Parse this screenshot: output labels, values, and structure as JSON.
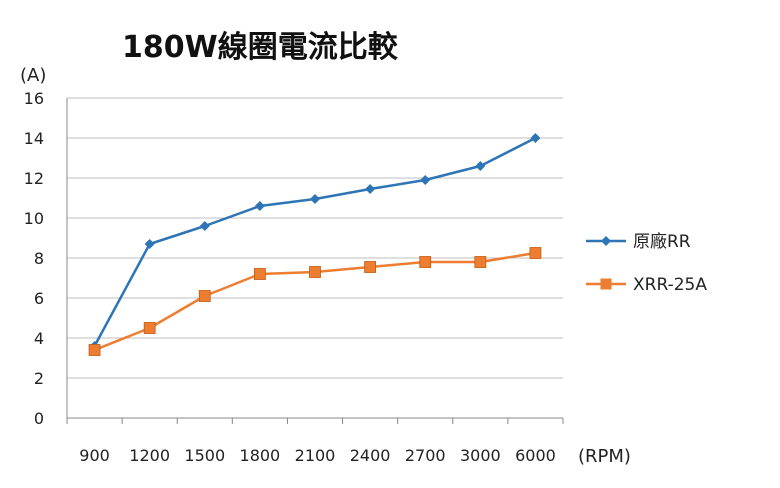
{
  "chart_data": {
    "type": "line",
    "title": "180W線圈電流比較",
    "ylabel": "(A)",
    "xlabel": "(RPM)",
    "categories": [
      "900",
      "1200",
      "1500",
      "1800",
      "2100",
      "2400",
      "2700",
      "3000",
      "6000"
    ],
    "ylim": [
      0,
      16
    ],
    "yticks": [
      0,
      2,
      4,
      6,
      8,
      10,
      12,
      14,
      16
    ],
    "grid": true,
    "legend": "right",
    "series": [
      {
        "name": "原廠RR",
        "color": "#2e75b6",
        "marker": "diamond",
        "values": [
          3.6,
          8.7,
          9.6,
          10.6,
          10.95,
          11.45,
          11.9,
          12.6,
          14.0
        ]
      },
      {
        "name": "XRR-25A",
        "color": "#ed7d31",
        "marker": "square",
        "values": [
          3.4,
          4.5,
          6.1,
          7.2,
          7.3,
          7.55,
          7.8,
          7.8,
          8.25
        ]
      }
    ]
  }
}
